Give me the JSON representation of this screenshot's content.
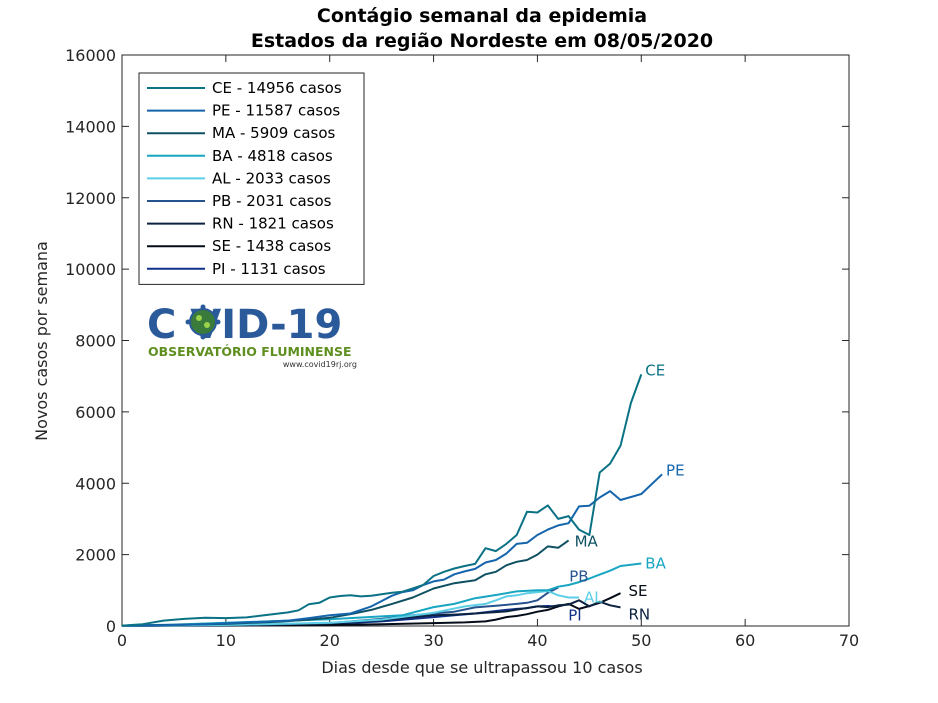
{
  "chart_data": {
    "type": "line",
    "title": "Contágio semanal da epidemia",
    "subtitle": "Estados da região Nordeste  em 08/05/2020",
    "xlabel": "Dias desde que se ultrapassou 10 casos",
    "ylabel": "Novos casos por semana",
    "xlim": [
      0,
      70
    ],
    "ylim": [
      0,
      16000
    ],
    "xticks": [
      0,
      10,
      20,
      30,
      40,
      50,
      60,
      70
    ],
    "yticks": [
      0,
      2000,
      4000,
      6000,
      8000,
      10000,
      12000,
      14000,
      16000
    ],
    "grid": false,
    "legend_position": "top-left",
    "series": [
      {
        "name": "CE - 14956 casos",
        "end_label": "CE",
        "color": "#0b7285",
        "x": [
          0,
          2,
          4,
          6,
          8,
          10,
          12,
          14,
          16,
          17,
          18,
          19,
          20,
          21,
          22,
          23,
          24,
          25,
          26,
          27,
          28,
          29,
          30,
          31,
          32,
          33,
          34,
          35,
          36,
          37,
          38,
          39,
          40,
          41,
          42,
          43,
          44,
          45,
          46,
          47,
          48,
          49,
          50
        ],
        "y": [
          10,
          50,
          150,
          200,
          230,
          220,
          240,
          310,
          380,
          440,
          610,
          650,
          800,
          840,
          860,
          830,
          850,
          890,
          930,
          960,
          1050,
          1150,
          1400,
          1520,
          1610,
          1680,
          1740,
          2180,
          2100,
          2300,
          2550,
          3200,
          3180,
          3380,
          3000,
          3080,
          2700,
          2550,
          4300,
          4550,
          5050,
          6250,
          7050
        ]
      },
      {
        "name": "PE - 11587 casos",
        "end_label": "PE",
        "color": "#1565ad",
        "x": [
          0,
          4,
          8,
          12,
          16,
          18,
          20,
          22,
          24,
          26,
          27,
          28,
          29,
          30,
          31,
          32,
          33,
          34,
          35,
          36,
          37,
          38,
          39,
          40,
          41,
          42,
          43,
          44,
          45,
          46,
          47,
          48,
          50,
          52
        ],
        "y": [
          10,
          20,
          50,
          100,
          150,
          220,
          300,
          350,
          550,
          850,
          950,
          1000,
          1150,
          1250,
          1300,
          1450,
          1530,
          1600,
          1780,
          1850,
          2030,
          2300,
          2330,
          2550,
          2700,
          2820,
          2880,
          3350,
          3370,
          3600,
          3780,
          3530,
          3700,
          4250
        ]
      },
      {
        "name": "MA - 5909 casos",
        "end_label": "MA",
        "color": "#0f5163",
        "x": [
          0,
          5,
          10,
          15,
          18,
          20,
          22,
          24,
          26,
          28,
          30,
          32,
          34,
          35,
          36,
          37,
          38,
          39,
          40,
          41,
          42,
          43
        ],
        "y": [
          10,
          30,
          60,
          120,
          180,
          230,
          330,
          450,
          620,
          800,
          1050,
          1200,
          1280,
          1450,
          1520,
          1700,
          1800,
          1850,
          2000,
          2230,
          2190,
          2400
        ]
      },
      {
        "name": "BA - 4818 casos",
        "end_label": "BA",
        "color": "#17a5c2",
        "x": [
          0,
          5,
          10,
          15,
          20,
          25,
          27,
          30,
          32,
          34,
          36,
          38,
          40,
          41,
          42,
          43,
          44,
          45,
          46,
          47,
          48,
          50
        ],
        "y": [
          10,
          40,
          90,
          140,
          190,
          270,
          300,
          530,
          620,
          780,
          870,
          970,
          1000,
          1000,
          1100,
          1150,
          1230,
          1330,
          1440,
          1550,
          1680,
          1750
        ]
      },
      {
        "name": "AL - 2033 casos",
        "end_label": "AL",
        "color": "#5ccfe6",
        "x": [
          0,
          10,
          20,
          25,
          30,
          33,
          35,
          36,
          37,
          38,
          39,
          40,
          41,
          42,
          43,
          44
        ],
        "y": [
          5,
          30,
          90,
          180,
          370,
          550,
          620,
          720,
          830,
          860,
          920,
          950,
          980,
          860,
          800,
          800
        ]
      },
      {
        "name": "PB - 2031 casos",
        "end_label": "PB",
        "color": "#27538f",
        "x": [
          0,
          10,
          20,
          25,
          28,
          30,
          32,
          34,
          36,
          38,
          39,
          40,
          41,
          42
        ],
        "y": [
          5,
          20,
          80,
          200,
          300,
          350,
          400,
          520,
          570,
          620,
          650,
          720,
          930,
          1080
        ]
      },
      {
        "name": "RN - 1821 casos",
        "end_label": "RN",
        "color": "#0b2240",
        "x": [
          0,
          10,
          20,
          25,
          28,
          30,
          32,
          34,
          35,
          36,
          37,
          38,
          40,
          41,
          42,
          43,
          44,
          45,
          46,
          47,
          48
        ],
        "y": [
          5,
          30,
          80,
          160,
          250,
          300,
          320,
          350,
          370,
          390,
          410,
          460,
          550,
          530,
          580,
          600,
          720,
          550,
          680,
          580,
          520
        ]
      },
      {
        "name": "SE - 1438 casos",
        "end_label": "SE",
        "color": "#050d1a",
        "x": [
          0,
          10,
          20,
          25,
          30,
          33,
          35,
          36,
          37,
          38,
          39,
          40,
          41,
          42,
          43,
          44,
          45,
          46,
          47,
          48
        ],
        "y": [
          5,
          10,
          30,
          50,
          80,
          100,
          130,
          180,
          250,
          280,
          330,
          400,
          450,
          550,
          620,
          480,
          560,
          650,
          780,
          920
        ]
      },
      {
        "name": "PI - 1131 casos",
        "end_label": "PI",
        "color": "#10308a",
        "x": [
          0,
          10,
          20,
          25,
          28,
          30,
          32,
          34,
          36,
          37,
          38,
          39,
          40,
          41,
          42
        ],
        "y": [
          5,
          20,
          60,
          130,
          200,
          250,
          300,
          350,
          420,
          450,
          480,
          500,
          550,
          560,
          540
        ]
      }
    ]
  },
  "logo": {
    "main_text": "C VID-19",
    "subtitle": "OBSERVATÓRIO FLUMINENSE",
    "url": "www.covid19rj.org"
  }
}
